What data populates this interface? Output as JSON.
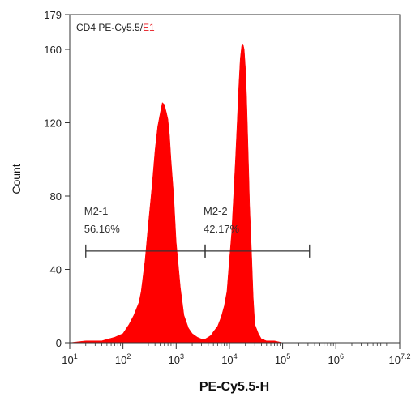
{
  "chart_data": {
    "type": "area",
    "header": {
      "channel": "CD4 PE-Cy5.5/",
      "gate": "E1",
      "gate_color": "#e8141b"
    },
    "xlabel": "PE-Cy5.5-H",
    "ylabel": "Count",
    "x_scale": "log10",
    "xlim": [
      10,
      15848932
    ],
    "ylim": [
      0,
      179
    ],
    "x_ticks": [
      {
        "value": 10,
        "base": "10",
        "exp": "1"
      },
      {
        "value": 100,
        "base": "10",
        "exp": "2"
      },
      {
        "value": 1000,
        "base": "10",
        "exp": "3"
      },
      {
        "value": 10000,
        "base": "10",
        "exp": "4"
      },
      {
        "value": 100000,
        "base": "10",
        "exp": "5"
      },
      {
        "value": 1000000,
        "base": "10",
        "exp": "6"
      },
      {
        "value": 15848932,
        "base": "10",
        "exp": "7.2"
      }
    ],
    "y_ticks": [
      "0",
      "40",
      "80",
      "120",
      "160",
      "179"
    ],
    "series": [
      {
        "fill": "#ff0000",
        "x": [
          10,
          20,
          40,
          70,
          100,
          130,
          160,
          200,
          220,
          260,
          300,
          350,
          400,
          450,
          500,
          550,
          600,
          650,
          700,
          750,
          800,
          900,
          1000,
          1200,
          1400,
          1700,
          2000,
          2500,
          3000,
          3500,
          4000,
          4500,
          5000,
          6000,
          7000,
          8000,
          9000,
          10000,
          11000,
          12000,
          13000,
          14000,
          15000,
          16000,
          17000,
          18000,
          19000,
          20000,
          21000,
          22000,
          23000,
          24000,
          26000,
          28000,
          30000,
          35000,
          40000,
          50000,
          70000,
          100000,
          1000000,
          15848932
        ],
        "y": [
          0,
          1,
          1,
          3,
          5,
          10,
          15,
          22,
          28,
          45,
          65,
          85,
          105,
          118,
          125,
          131,
          130,
          126,
          122,
          113,
          100,
          80,
          55,
          30,
          15,
          8,
          5,
          3,
          2,
          2,
          3,
          4,
          6,
          9,
          14,
          20,
          28,
          45,
          60,
          80,
          100,
          120,
          140,
          155,
          162,
          163,
          160,
          150,
          135,
          115,
          95,
          75,
          50,
          25,
          10,
          5,
          2,
          1,
          1,
          0,
          0,
          0
        ]
      }
    ],
    "gates": [
      {
        "name": "M2-1",
        "percent": "56.16%",
        "x_start": 20,
        "x_end": 3500,
        "y": 50
      },
      {
        "name": "M2-2",
        "percent": "42.17%",
        "x_start": 3500,
        "x_end": 320000,
        "y": 50
      }
    ],
    "grid": false
  }
}
